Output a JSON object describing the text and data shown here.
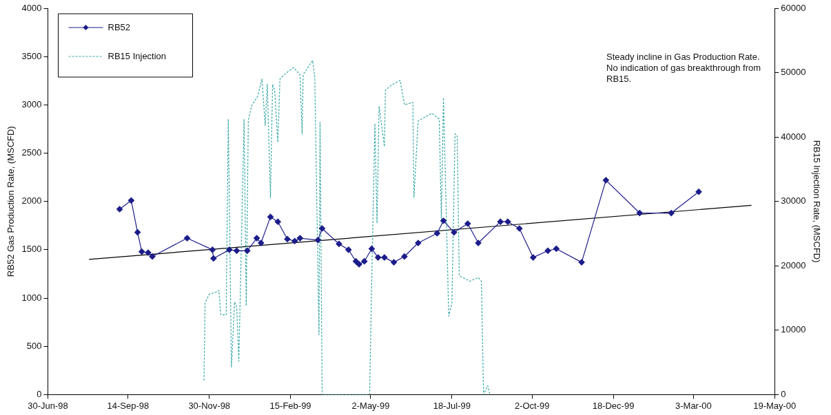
{
  "chart_data": {
    "type": "line",
    "ylabel": "RB52 Gas Production Rate, (MSCFD)",
    "y2label": "RB15 Injection Rate, (MSCFD)",
    "annotations": [
      "Steady incline in Gas Production Rate. No indication of gas breakthrough from RB15."
    ],
    "xlim": [
      "1998-06-30",
      "2000-05-19"
    ],
    "xticks": [
      {
        "value": "1998-06-30",
        "label": "30-Jun-98"
      },
      {
        "value": "1998-09-14",
        "label": "14-Sep-98"
      },
      {
        "value": "1998-11-30",
        "label": "30-Nov-98"
      },
      {
        "value": "1999-02-15",
        "label": "15-Feb-99"
      },
      {
        "value": "1999-05-02",
        "label": "2-May-99"
      },
      {
        "value": "1999-07-18",
        "label": "18-Jul-99"
      },
      {
        "value": "1999-10-02",
        "label": "2-Oct-99"
      },
      {
        "value": "1999-12-18",
        "label": "18-Dec-99"
      },
      {
        "value": "2000-03-03",
        "label": "3-Mar-00"
      },
      {
        "value": "2000-05-19",
        "label": "19-May-00"
      }
    ],
    "ylim": [
      0,
      4000
    ],
    "yticks": [
      0,
      500,
      1000,
      1500,
      2000,
      2500,
      3000,
      3500,
      4000
    ],
    "y2lim": [
      0,
      60000
    ],
    "y2ticks": [
      0,
      10000,
      20000,
      30000,
      40000,
      50000,
      60000
    ],
    "grid": false,
    "legend": "top left",
    "series": [
      {
        "name": "RB52",
        "color": "#1c1c8a",
        "marker": "diamond",
        "line_style": "solid",
        "x": [
          "1998-09-06",
          "1998-09-17",
          "1998-09-23",
          "1998-09-27",
          "1998-10-03",
          "1998-10-07",
          "1998-11-09",
          "1998-12-03",
          "1998-12-04",
          "1998-12-19",
          "1998-12-26",
          "1999-01-05",
          "1999-01-14",
          "1999-01-18",
          "1999-01-27",
          "1999-02-03",
          "1999-02-12",
          "1999-02-19",
          "1999-02-24",
          "1999-03-13",
          "1999-03-17",
          "1999-04-02",
          "1999-04-11",
          "1999-04-18",
          "1999-04-21",
          "1999-04-26",
          "1999-05-03",
          "1999-05-09",
          "1999-05-15",
          "1999-05-24",
          "1999-06-03",
          "1999-06-16",
          "1999-07-04",
          "1999-07-10",
          "1999-07-20",
          "1999-08-02",
          "1999-08-12",
          "1999-09-02",
          "1999-09-09",
          "1999-09-20",
          "1999-10-03",
          "1999-10-17",
          "1999-10-25",
          "1999-11-18",
          "1999-12-11",
          "2000-01-12",
          "2000-02-11",
          "2000-03-08"
        ],
        "values": [
          1920,
          2010,
          1680,
          1480,
          1470,
          1430,
          1620,
          1500,
          1410,
          1500,
          1490,
          1490,
          1620,
          1570,
          1840,
          1790,
          1610,
          1590,
          1620,
          1600,
          1720,
          1560,
          1500,
          1380,
          1350,
          1380,
          1510,
          1420,
          1420,
          1370,
          1430,
          1570,
          1670,
          1800,
          1680,
          1770,
          1570,
          1790,
          1790,
          1720,
          1420,
          1490,
          1510,
          1370,
          2220,
          1880,
          1880,
          2100
        ]
      },
      {
        "name": "RB15 Injection",
        "color": "#3aa8a8",
        "axis": "y2",
        "marker": "none",
        "line_style": "dashed",
        "x": [
          "1998-11-25",
          "1998-11-26",
          "1998-11-30",
          "1998-12-08",
          "1998-12-09",
          "1998-12-11",
          "1998-12-16",
          "1998-12-18",
          "1998-12-21",
          "1998-12-24",
          "1998-12-26",
          "1998-12-28",
          "1999-01-02",
          "1999-01-04",
          "1999-01-06",
          "1999-01-09",
          "1999-01-15",
          "1999-01-19",
          "1999-01-22",
          "1999-01-24",
          "1999-01-27",
          "1999-01-29",
          "1999-01-31",
          "1999-02-03",
          "1999-02-05",
          "1999-02-09",
          "1999-02-18",
          "1999-02-24",
          "1999-02-26",
          "1999-02-27",
          "1999-03-08",
          "1999-03-10",
          "1999-03-14",
          "1999-03-15",
          "1999-03-17",
          "1999-05-01",
          "1999-05-03",
          "1999-05-06",
          "1999-05-08",
          "1999-05-10",
          "1999-05-15",
          "1999-05-16",
          "1999-05-22",
          "1999-05-30",
          "1999-06-03",
          "1999-06-11",
          "1999-06-12",
          "1999-06-16",
          "1999-06-29",
          "1999-07-06",
          "1999-07-08",
          "1999-07-10",
          "1999-07-15",
          "1999-07-18",
          "1999-07-21",
          "1999-07-23",
          "1999-07-25",
          "1999-08-04",
          "1999-08-12",
          "1999-08-15",
          "1999-08-17",
          "1999-08-21",
          "1999-08-23"
        ],
        "values": [
          2200,
          14200,
          15600,
          16000,
          16200,
          12400,
          12400,
          42800,
          4300,
          14400,
          13600,
          5200,
          42800,
          13800,
          42500,
          44800,
          46400,
          49000,
          41800,
          48200,
          30600,
          48200,
          47200,
          39200,
          49000,
          49700,
          50800,
          49700,
          40500,
          49700,
          51900,
          49300,
          9300,
          42300,
          0,
          0,
          17800,
          42100,
          26600,
          44800,
          38500,
          47300,
          48100,
          48800,
          45000,
          45400,
          30600,
          42500,
          43700,
          42800,
          27300,
          46100,
          12200,
          14200,
          40500,
          40100,
          18500,
          17600,
          18200,
          17600,
          0,
          1400,
          0
        ]
      },
      {
        "type": "line",
        "color": "#000000",
        "marker": "none",
        "line_style": "solid",
        "x": [
          "1998-08-08",
          "2000-04-27"
        ],
        "values": [
          1400,
          1960
        ]
      }
    ]
  }
}
